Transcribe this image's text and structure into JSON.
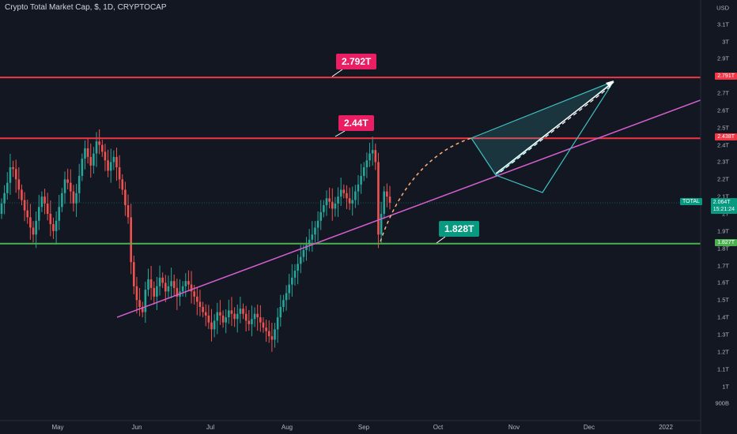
{
  "window": {
    "title": "Crypto Total Market Cap, $, 1D, CRYPTOCAP",
    "currency": "USD"
  },
  "chart_data": {
    "type": "candlestick",
    "title": "Crypto Total Market Cap, $, 1D, CRYPTOCAP",
    "y_axis": {
      "unit": "USD",
      "ticks": [
        "3.1T",
        "3T",
        "2.9T",
        "2.8T",
        "2.7T",
        "2.6T",
        "2.5T",
        "2.4T",
        "2.3T",
        "2.2T",
        "2.1T",
        "2T",
        "1.9T",
        "1.8T",
        "1.7T",
        "1.6T",
        "1.5T",
        "1.4T",
        "1.3T",
        "1.2T",
        "1.1T",
        "1T",
        "900B"
      ],
      "range_trillions": [
        0.85,
        3.25
      ]
    },
    "x_axis": {
      "ticks": [
        "May",
        "Jun",
        "Jul",
        "Aug",
        "Sep",
        "Oct",
        "Nov",
        "Dec",
        "2022"
      ]
    },
    "price_closes_trillions": [
      2.06,
      2.12,
      2.18,
      2.27,
      2.26,
      2.2,
      2.14,
      2.08,
      2.02,
      1.98,
      1.92,
      1.88,
      1.96,
      2.04,
      2.1,
      2.06,
      2.0,
      1.94,
      1.9,
      1.96,
      2.04,
      2.12,
      2.2,
      2.18,
      2.13,
      2.06,
      2.12,
      2.22,
      2.32,
      2.38,
      2.33,
      2.28,
      2.35,
      2.42,
      2.4,
      2.36,
      2.31,
      2.25,
      2.3,
      2.33,
      2.27,
      2.2,
      2.14,
      2.05,
      1.98,
      1.72,
      1.58,
      1.5,
      1.46,
      1.43,
      1.56,
      1.62,
      1.57,
      1.52,
      1.58,
      1.63,
      1.6,
      1.55,
      1.58,
      1.61,
      1.57,
      1.52,
      1.55,
      1.58,
      1.61,
      1.59,
      1.55,
      1.52,
      1.49,
      1.46,
      1.43,
      1.41,
      1.37,
      1.33,
      1.38,
      1.43,
      1.41,
      1.37,
      1.4,
      1.44,
      1.42,
      1.39,
      1.42,
      1.45,
      1.42,
      1.38,
      1.36,
      1.39,
      1.42,
      1.4,
      1.37,
      1.34,
      1.32,
      1.29,
      1.27,
      1.33,
      1.4,
      1.46,
      1.5,
      1.54,
      1.59,
      1.63,
      1.67,
      1.71,
      1.75,
      1.79,
      1.82,
      1.85,
      1.88,
      1.92,
      1.96,
      2.01,
      2.05,
      2.09,
      2.07,
      2.03,
      2.06,
      2.1,
      2.14,
      2.12,
      2.09,
      2.06,
      2.08,
      2.13,
      2.17,
      2.22,
      2.27,
      2.31,
      2.35,
      2.37,
      2.3,
      1.88,
      2.0,
      2.13,
      2.1,
      2.064
    ],
    "horizontal_levels": [
      {
        "label": "2.792T",
        "price_label": "2.791T",
        "value": 2.791,
        "color": "#f23645"
      },
      {
        "label": "2.44T",
        "price_label": "2.438T",
        "value": 2.438,
        "color": "#f23645"
      },
      {
        "label": "1.828T",
        "price_label": "1.827T",
        "value": 1.827,
        "color": "#4caf50"
      }
    ],
    "current": {
      "symbol": "TOTAL",
      "value_label": "2.064T",
      "countdown": "15:21:24",
      "value": 2.064
    },
    "colors": {
      "up": "#26a69a",
      "down": "#ef5350",
      "trendline": "#d55fd0",
      "pattern": "#3ec0c0",
      "projection": "#ffb07a"
    }
  }
}
